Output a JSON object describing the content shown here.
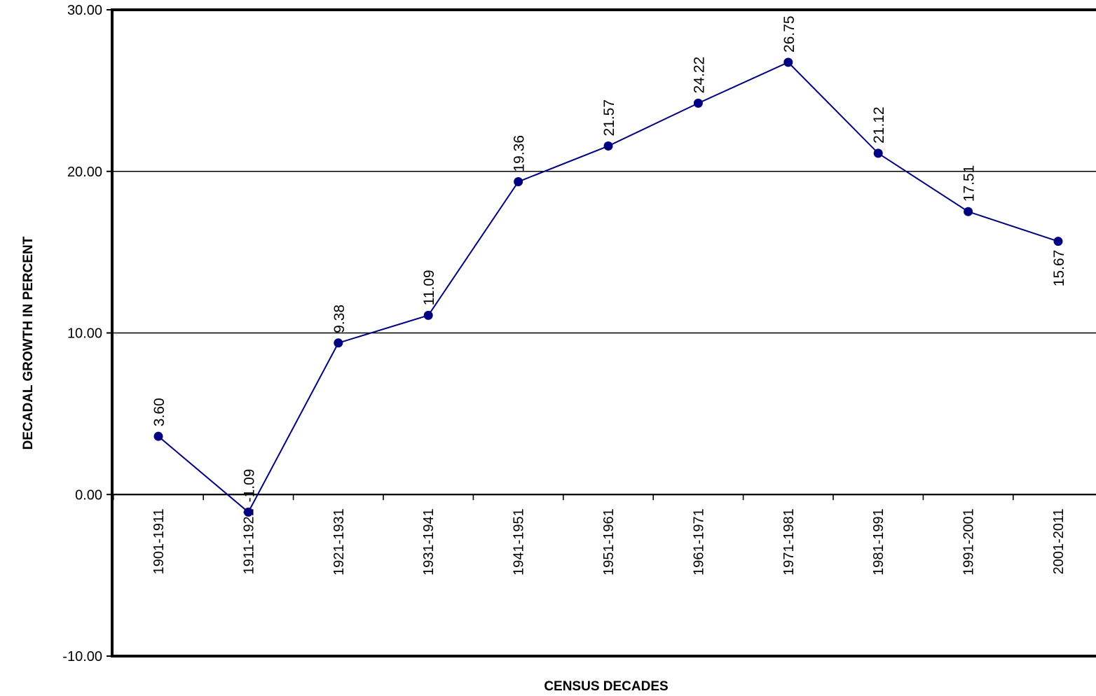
{
  "chart_data": {
    "type": "line",
    "title": "",
    "xlabel": "CENSUS DECADES",
    "ylabel": "DECADAL  GROWTH  IN  PERCENT",
    "categories": [
      "1901-1911",
      "1911-1921",
      "1921-1931",
      "1931-1941",
      "1941-1951",
      "1951-1961",
      "1961-1971",
      "1971-1981",
      "1981-1991",
      "1991-2001",
      "2001-2011"
    ],
    "values": [
      3.6,
      -1.09,
      9.38,
      11.09,
      19.36,
      21.57,
      24.22,
      26.75,
      21.12,
      17.51,
      15.67
    ],
    "data_labels": [
      "3.60",
      "-1.09",
      "9.38",
      "11.09",
      "19.36",
      "21.57",
      "24.22",
      "26.75",
      "21.12",
      "17.51",
      "15.67"
    ],
    "yticks": [
      -10,
      0,
      10,
      20,
      30
    ],
    "ytick_labels": [
      "-10.00",
      "0.00",
      "10.00",
      "20.00",
      "30.00"
    ],
    "ylim": [
      -10,
      30
    ],
    "gridlines": [
      10,
      20
    ],
    "grid": true,
    "legend": "none",
    "colors": {
      "line": "#000080",
      "marker": "#000080",
      "axis": "#000000"
    }
  }
}
